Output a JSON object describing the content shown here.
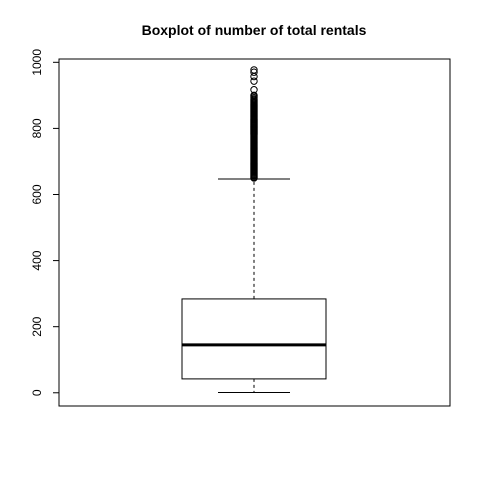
{
  "chart_data": {
    "type": "boxplot",
    "title": "Boxplot of number of total rentals",
    "xlabel": "",
    "ylabel": "",
    "ylim": [
      -40,
      1010
    ],
    "y_ticks": [
      0,
      200,
      400,
      600,
      800,
      1000
    ],
    "y_tick_labels": [
      "0",
      "200",
      "400",
      "600",
      "800",
      "1000"
    ],
    "grid": false,
    "legend": "none",
    "series": [
      {
        "whisker_low": 1,
        "q1": 42,
        "median": 145,
        "q3": 284,
        "whisker_high": 647,
        "outliers": [
          650,
          652,
          655,
          658,
          661,
          664,
          667,
          670,
          673,
          676,
          679,
          682,
          685,
          688,
          691,
          694,
          697,
          700,
          703,
          706,
          709,
          712,
          715,
          718,
          721,
          724,
          727,
          730,
          733,
          736,
          739,
          742,
          745,
          748,
          751,
          754,
          757,
          760,
          763,
          766,
          769,
          772,
          775,
          778,
          781,
          784,
          787,
          790,
          793,
          796,
          799,
          802,
          805,
          808,
          811,
          814,
          817,
          820,
          823,
          826,
          829,
          832,
          835,
          838,
          841,
          844,
          847,
          850,
          853,
          856,
          859,
          862,
          865,
          868,
          871,
          874,
          877,
          880,
          883,
          886,
          889,
          893,
          897,
          900,
          917,
          943,
          957,
          970,
          977
        ]
      }
    ]
  }
}
